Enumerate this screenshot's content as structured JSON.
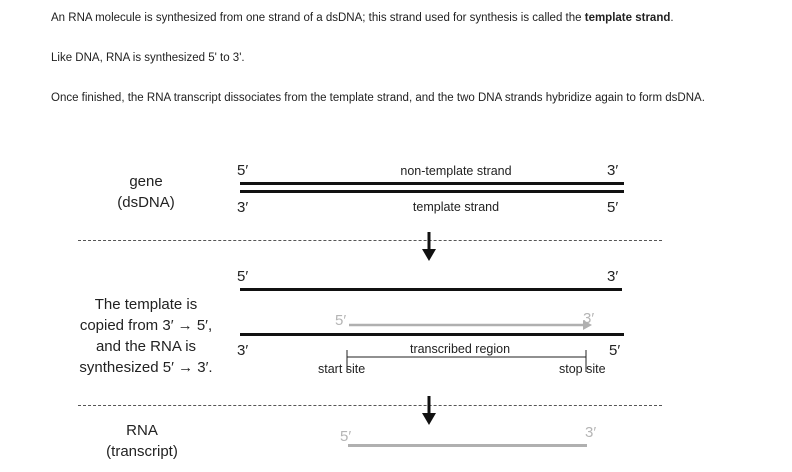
{
  "paragraphs": {
    "p1_before": "An RNA molecule is synthesized from one strand of a dsDNA; this strand used for synthesis is called the ",
    "p1_bold": "template strand",
    "p1_after": ".",
    "p2": "Like DNA, RNA is synthesized 5' to 3'.",
    "p3": "Once finished, the RNA transcript dissociates from the template strand, and the two DNA strands hybridize again to form dsDNA."
  },
  "gene": {
    "label_line1": "gene",
    "label_line2": "(dsDNA)",
    "top_left": "5′",
    "top_right": "3′",
    "top_label": "non-template strand",
    "bottom_left": "3′",
    "bottom_right": "5′",
    "bottom_label": "template strand"
  },
  "transcription": {
    "label_line1": "The template is",
    "label_line2": "copied from 3′ → 5′,",
    "label_line3": "and the RNA is",
    "label_line4": "synthesized 5′ → 3′.",
    "top_left": "5′",
    "top_right": "3′",
    "rna_left": "5′",
    "rna_right": "3′",
    "bottom_left": "3′",
    "bottom_right": "5′",
    "region_label": "transcribed region",
    "start_label": "start site",
    "stop_label": "stop site"
  },
  "rna": {
    "label_line1": "RNA",
    "label_line2": "(transcript)",
    "left": "5′",
    "right": "3′"
  },
  "colors": {
    "dna": "#111111",
    "rna": "#b0b0b0",
    "rna_text": "#b5b5b5"
  }
}
